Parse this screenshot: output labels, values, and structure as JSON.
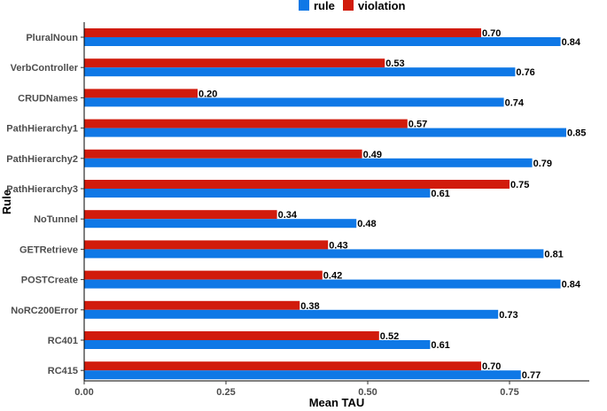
{
  "chart_data": {
    "type": "bar",
    "orientation": "horizontal",
    "xlabel": "Mean TAU",
    "ylabel": "Rule",
    "xlim": [
      0,
      0.87
    ],
    "x_ticks": [
      "0.00",
      "0.25",
      "0.50",
      "0.75"
    ],
    "grid": false,
    "legend": {
      "position": "top",
      "entries": [
        "rule",
        "violation"
      ]
    },
    "categories": [
      "PluralNoun",
      "VerbController",
      "CRUDNames",
      "PathHierarchy1",
      "PathHierarchy2",
      "PathHierarchy3",
      "NoTunnel",
      "GETRetrieve",
      "POSTCreate",
      "NoRC200Error",
      "RC401",
      "RC415"
    ],
    "series": [
      {
        "name": "rule",
        "color": "#0f78e6",
        "values": [
          0.84,
          0.76,
          0.74,
          0.85,
          0.79,
          0.61,
          0.48,
          0.81,
          0.84,
          0.73,
          0.61,
          0.77
        ],
        "labels": [
          "0.84",
          "0.76",
          "0.74",
          "0.85",
          "0.79",
          "0.61",
          "0.48",
          "0.81",
          "0.84",
          "0.73",
          "0.61",
          "0.77"
        ]
      },
      {
        "name": "violation",
        "color": "#d11b0c",
        "values": [
          0.7,
          0.53,
          0.2,
          0.57,
          0.49,
          0.75,
          0.34,
          0.43,
          0.42,
          0.38,
          0.52,
          0.7
        ],
        "labels": [
          "0.70",
          "0.53",
          "0.20",
          "0.57",
          "0.49",
          "0.75",
          "0.34",
          "0.43",
          "0.42",
          "0.38",
          "0.52",
          "0.70"
        ]
      }
    ]
  }
}
